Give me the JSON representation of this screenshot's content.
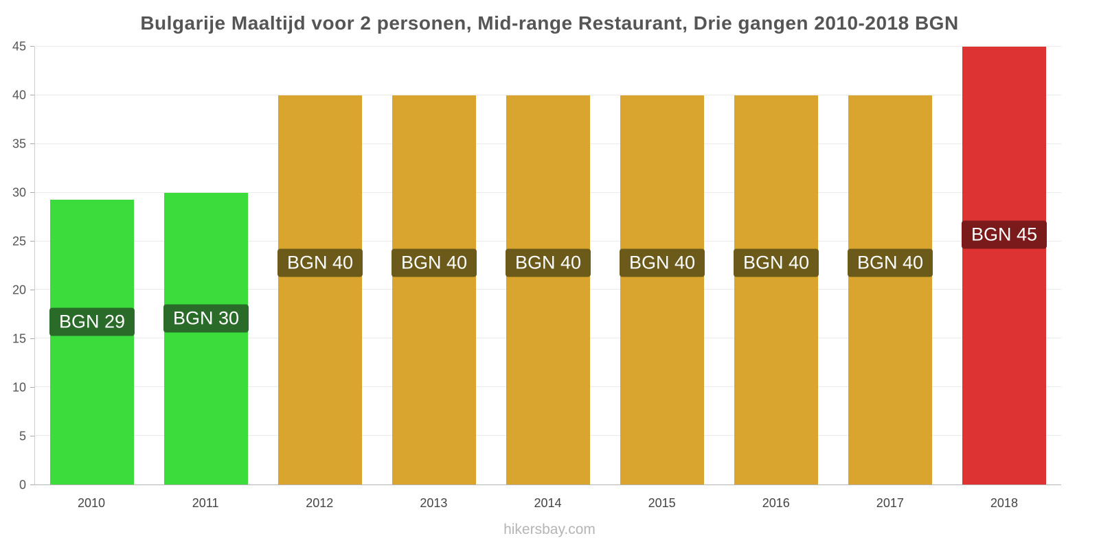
{
  "chart_data": {
    "type": "bar",
    "title": "Bulgarije Maaltijd voor 2 personen, Mid-range Restaurant, Drie gangen 2010-2018 BGN",
    "categories": [
      "2010",
      "2011",
      "2012",
      "2013",
      "2014",
      "2015",
      "2016",
      "2017",
      "2018"
    ],
    "values": [
      29.3,
      30,
      40,
      40,
      40,
      40,
      40,
      40,
      45
    ],
    "bar_labels": [
      "BGN 29",
      "BGN 30",
      "BGN 40",
      "BGN 40",
      "BGN 40",
      "BGN 40",
      "BGN 40",
      "BGN 40",
      "BGN 45"
    ],
    "bar_colors": [
      "#3bdc3b",
      "#3bdc3b",
      "#d9a52e",
      "#d9a52e",
      "#d9a52e",
      "#d9a52e",
      "#d9a52e",
      "#d9a52e",
      "#dd3333"
    ],
    "label_bg_colors": [
      "#2a6b2a",
      "#2a6b2a",
      "#6b5a1a",
      "#6b5a1a",
      "#6b5a1a",
      "#6b5a1a",
      "#6b5a1a",
      "#6b5a1a",
      "#7a1a1a"
    ],
    "xlabel": "",
    "ylabel": "",
    "ylim": [
      0,
      45
    ],
    "yticks": [
      0,
      5,
      10,
      15,
      20,
      25,
      30,
      35,
      40,
      45
    ],
    "grid": true,
    "legend": false
  },
  "footer": {
    "text": "hikersbay.com"
  },
  "style_colors": {
    "title": "#555555",
    "axis": "#b5b5b5",
    "tick_label": "#555555",
    "gridline": "#ebebeb",
    "watermark": "#b5b5b5"
  }
}
